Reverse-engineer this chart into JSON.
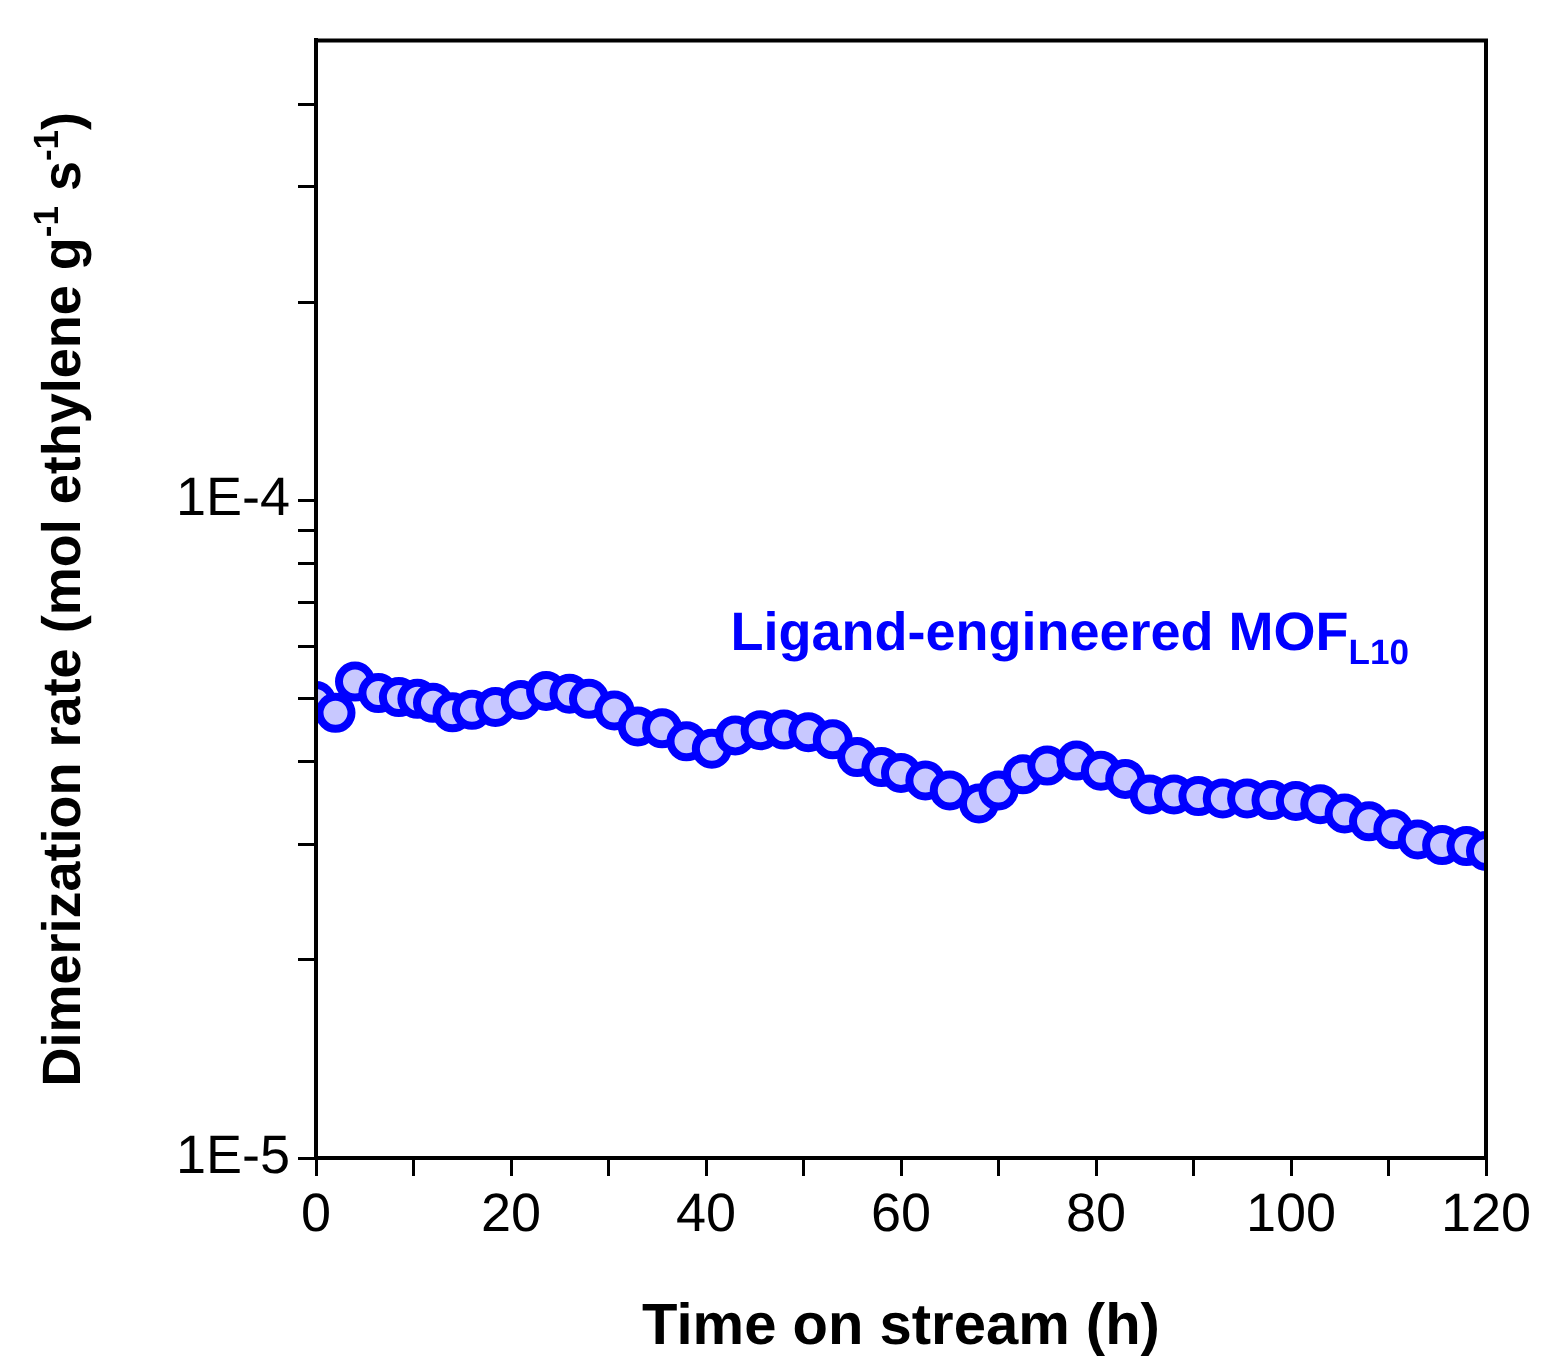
{
  "chart_data": {
    "type": "scatter",
    "xlabel": "Time on stream (h)",
    "ylabel": "Dimerization rate (mol ethylene g$^{-1}$ s$^{-1}$)",
    "log": "y",
    "marker": "circle",
    "grid": false,
    "legend": false,
    "xlim": [
      0,
      120
    ],
    "xticks": [
      0,
      {
        "value": 10,
        "label": null
      },
      20,
      {
        "value": 30,
        "label": null
      },
      40,
      {
        "value": 50,
        "label": null
      },
      60,
      {
        "value": 70,
        "label": null
      },
      80,
      {
        "value": 90,
        "label": null
      },
      100,
      {
        "value": 110,
        "label": null
      },
      120
    ],
    "ylim": [
      1e-05,
      0.0005
    ],
    "yticks": [
      {
        "value": 1e-05,
        "label": "1E-5"
      },
      {
        "value": 2e-05,
        "label": null
      },
      {
        "value": 3e-05,
        "label": null
      },
      {
        "value": 4e-05,
        "label": null
      },
      {
        "value": 5e-05,
        "label": null
      },
      {
        "value": 6e-05,
        "label": null
      },
      {
        "value": 7e-05,
        "label": null
      },
      {
        "value": 8e-05,
        "label": null
      },
      {
        "value": 9e-05,
        "label": null
      },
      {
        "value": 0.0001,
        "label": "1E-4"
      },
      {
        "value": 0.0002,
        "label": null
      },
      {
        "value": 0.0003,
        "label": null
      },
      {
        "value": 0.0004,
        "label": null
      }
    ],
    "series": [
      {
        "name": "Ligand-engineered MOF$_{L10}$",
        "color": "#0000ff",
        "x": [
          0,
          2,
          4,
          6.4,
          8.5,
          10.4,
          12,
          14,
          16,
          18.4,
          21,
          23.6,
          26,
          28,
          30.6,
          33,
          35.5,
          38,
          40.6,
          43,
          45.6,
          48,
          50.5,
          53,
          55.5,
          58,
          60,
          62.5,
          65,
          68,
          70,
          72.5,
          75,
          78,
          80.5,
          83,
          85.5,
          88,
          90.5,
          93,
          95.5,
          98,
          100.5,
          103,
          105.5,
          108,
          110.5,
          113,
          115.5,
          118,
          120
        ],
        "values": [
          4.95e-05,
          4.75e-05,
          5.3e-05,
          5.09e-05,
          5.02e-05,
          4.99e-05,
          4.92e-05,
          4.76e-05,
          4.8e-05,
          4.85e-05,
          4.97e-05,
          5.13e-05,
          5.08e-05,
          4.99e-05,
          4.79e-05,
          4.53e-05,
          4.5e-05,
          4.3e-05,
          4.19e-05,
          4.39e-05,
          4.47e-05,
          4.48e-05,
          4.44e-05,
          4.33e-05,
          4.07e-05,
          3.93e-05,
          3.85e-05,
          3.75e-05,
          3.62e-05,
          3.46e-05,
          3.62e-05,
          3.83e-05,
          3.95e-05,
          4.02e-05,
          3.88e-05,
          3.77e-05,
          3.57e-05,
          3.57e-05,
          3.55e-05,
          3.52e-05,
          3.52e-05,
          3.5e-05,
          3.49e-05,
          3.45e-05,
          3.34e-05,
          3.25e-05,
          3.16e-05,
          3.05e-05,
          2.99e-05,
          2.98e-05,
          2.93e-05
        ]
      }
    ]
  }
}
